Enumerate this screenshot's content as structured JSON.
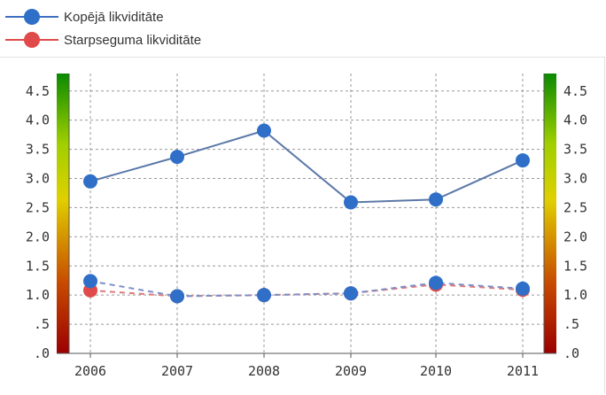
{
  "legend": [
    {
      "label": "Kopējā likviditāte",
      "color": "#3f6fc0"
    },
    {
      "label": "Starpseguma likviditāte",
      "color": "#e04a4a"
    }
  ],
  "chart_data": {
    "type": "line",
    "categories": [
      "2006",
      "2007",
      "2008",
      "2009",
      "2010",
      "2011"
    ],
    "series": [
      {
        "name": "Kopējā likviditāte",
        "values": [
          2.95,
          3.37,
          3.82,
          2.59,
          2.64,
          3.31
        ],
        "line_color": "#5b78a8",
        "marker_color": "#2f6fc8",
        "line_style": "solid"
      },
      {
        "name": "Kopējā likviditāte",
        "values": [
          1.24,
          0.98,
          1.0,
          1.03,
          1.21,
          1.11
        ],
        "line_color": "#7d8fc7",
        "marker_color": "#2f6fc8",
        "line_style": "dashed"
      },
      {
        "name": "Starpseguma likviditāte",
        "values": [
          1.08,
          0.98,
          1.0,
          1.03,
          1.18,
          1.09
        ],
        "line_color": "#e07a7a",
        "marker_color": "#e04a4a",
        "line_style": "dashed"
      }
    ],
    "ylim": [
      0,
      4.8
    ],
    "y_ticks": [
      {
        "value": 0,
        "label": ".0"
      },
      {
        "value": 0.5,
        "label": ".5"
      },
      {
        "value": 1.0,
        "label": "1.0"
      },
      {
        "value": 1.5,
        "label": "1.5"
      },
      {
        "value": 2.0,
        "label": "2.0"
      },
      {
        "value": 2.5,
        "label": "2.5"
      },
      {
        "value": 3.0,
        "label": "3.0"
      },
      {
        "value": 3.5,
        "label": "3.5"
      },
      {
        "value": 4.0,
        "label": "4.0"
      },
      {
        "value": 4.5,
        "label": "4.5"
      }
    ],
    "grid": true,
    "legend_position": "top-left",
    "color_scale": [
      "#9b0000",
      "#c74a00",
      "#e0d000",
      "#9fcf00",
      "#0a8a00"
    ]
  }
}
